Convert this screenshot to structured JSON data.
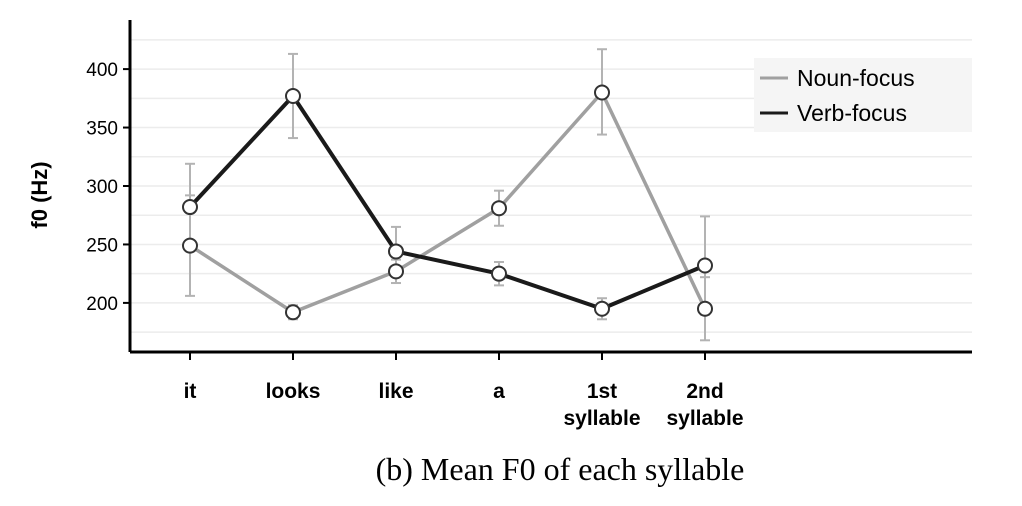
{
  "chart_data": {
    "type": "line",
    "title": "",
    "caption": "(b) Mean F0 of each syllable",
    "xlabel": "",
    "ylabel": "f0 (Hz)",
    "ylim": [
      158,
      442
    ],
    "yticks": [
      200,
      250,
      300,
      350,
      400
    ],
    "categories": [
      [
        "it"
      ],
      [
        "looks"
      ],
      [
        "like"
      ],
      [
        "a"
      ],
      [
        "1st",
        "syllable"
      ],
      [
        "2nd",
        "syllable"
      ]
    ],
    "grid": true,
    "legend_position": "top-right",
    "series": [
      {
        "name": "Noun-focus",
        "color": "#a0a0a0",
        "values": [
          249,
          192,
          227,
          281,
          380,
          195
        ],
        "err_low": [
          206,
          186,
          217,
          266,
          344,
          168
        ],
        "err_high": [
          292,
          198,
          237,
          296,
          417,
          222
        ]
      },
      {
        "name": "Verb-focus",
        "color": "#1a1a1a",
        "values": [
          282,
          377,
          244,
          225,
          195,
          232
        ],
        "err_low": [
          245,
          341,
          223,
          215,
          186,
          190
        ],
        "err_high": [
          319,
          413,
          265,
          235,
          204,
          274
        ]
      }
    ]
  }
}
